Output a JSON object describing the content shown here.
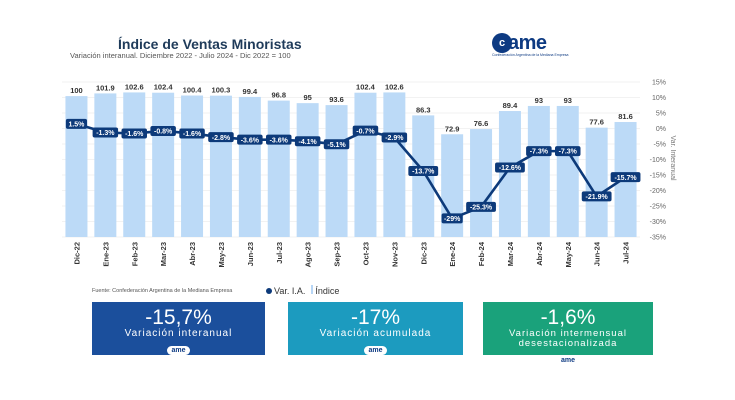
{
  "header": {
    "title": "Índice de Ventas Minoristas",
    "subtitle": "Variación interanual. Diciembre 2022 - Julio 2024 - Dic 2022 = 100",
    "logo_text": "ame",
    "logo_tagline": "Confederación Argentina de la Mediana Empresa"
  },
  "footer": {
    "source": "Fuente: Confederación Argentina de la Mediana Empresa",
    "legend_line": "Var. I.A.",
    "legend_bar": "Índice"
  },
  "cards": [
    {
      "value": "-15,7%",
      "label": "Variación interanual",
      "logo": "ame",
      "color": "#1b4f9c"
    },
    {
      "value": "-17%",
      "label": "Variación acumulada",
      "logo": "ame",
      "color": "#1c9bbf"
    },
    {
      "value": "-1,6%",
      "label": "Variación intermensual desestacionalizada",
      "logo": "ame",
      "color": "#1aa27b"
    }
  ],
  "chart_data": {
    "type": "bar",
    "categories": [
      "Dic-22",
      "Ene-23",
      "Feb-23",
      "Mar-23",
      "Abr-23",
      "May-23",
      "Jun-23",
      "Jul-23",
      "Ago-23",
      "Sep-23",
      "Oct-23",
      "Nov-23",
      "Dic-23",
      "Ene-24",
      "Feb-24",
      "Mar-24",
      "Abr-24",
      "May-24",
      "Jun-24",
      "Jul-24"
    ],
    "series": [
      {
        "name": "Índice",
        "type": "bar",
        "axis": "left",
        "values": [
          100,
          101.9,
          102.6,
          102.4,
          100.4,
          100.3,
          99.4,
          96.8,
          95,
          93.6,
          102.4,
          102.6,
          86.3,
          72.9,
          76.6,
          89.4,
          93,
          93,
          77.6,
          81.6
        ],
        "labels": [
          "100",
          "101.9",
          "102.6",
          "102.4",
          "100.4",
          "100.3",
          "99.4",
          "96.8",
          "95",
          "93.6",
          "102.4",
          "102.6",
          "86.3",
          "72.9",
          "76.6",
          "89.4",
          "93",
          "93",
          "77.6",
          "81.6"
        ],
        "color": "#bcdaf7"
      },
      {
        "name": "Var. I.A.",
        "type": "line",
        "axis": "right",
        "values": [
          1.5,
          -1.3,
          -1.6,
          -0.8,
          -1.6,
          -2.8,
          -3.6,
          -3.6,
          -4.1,
          -5.1,
          -0.7,
          -2.9,
          -13.7,
          -29,
          -25.3,
          -12.6,
          -7.3,
          -7.3,
          -21.9,
          -15.7
        ],
        "labels": [
          "1.5%",
          "-1.3%",
          "-1.6%",
          "-0.8%",
          "-1.6%",
          "-2.8%",
          "-3.6%",
          "-3.6%",
          "-4.1%",
          "-5.1%",
          "-0.7%",
          "-2.9%",
          "-13.7%",
          "-29%",
          "-25.3%",
          "-12.6%",
          "-7.3%",
          "-7.3%",
          "-21.9%",
          "-15.7%"
        ],
        "color": "#0d3a7a"
      }
    ],
    "y2label": "Var. Interanual",
    "y2ticks": [
      "15%",
      "10%",
      "5%",
      "0%",
      "-5%",
      "-10%",
      "-15%",
      "-20%",
      "-25%",
      "-30%",
      "-35%"
    ],
    "y2lim": [
      -35,
      15
    ],
    "grid": true
  }
}
